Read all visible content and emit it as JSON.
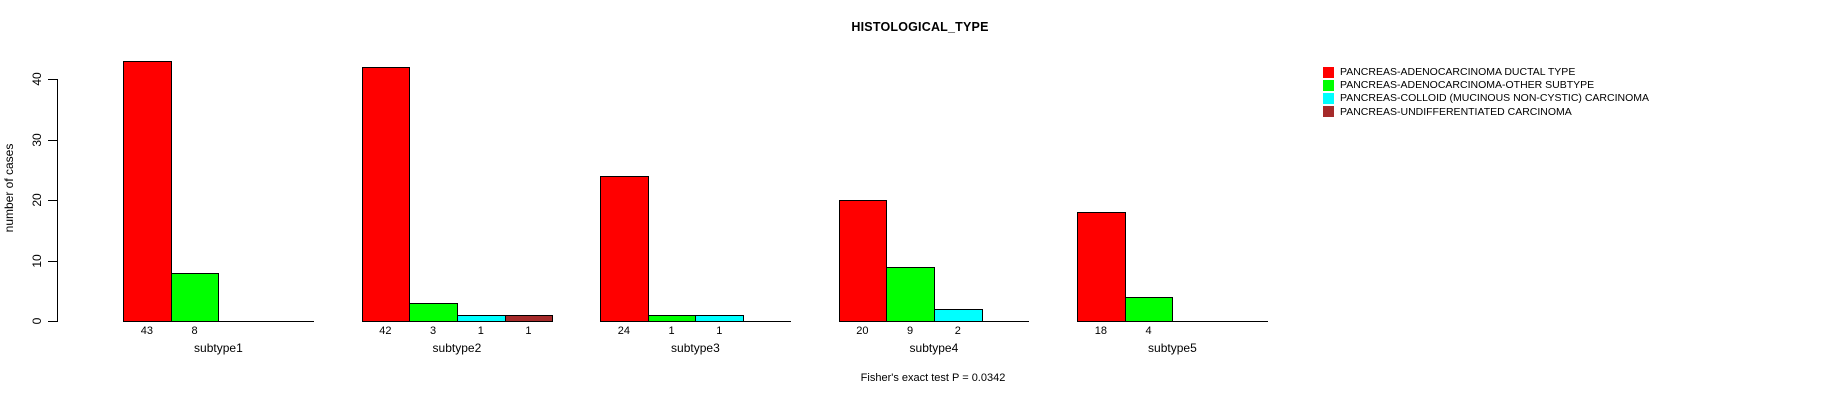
{
  "chart_data": {
    "type": "bar",
    "title": "HISTOLOGICAL_TYPE",
    "ylabel": "number of cases",
    "xlabel": "",
    "footnote": "Fisher's exact test P = 0.0342",
    "categories": [
      "subtype1",
      "subtype2",
      "subtype3",
      "subtype4",
      "subtype5"
    ],
    "series": [
      {
        "name": "PANCREAS-ADENOCARCINOMA DUCTAL TYPE",
        "color": "#FF0000",
        "values": [
          43,
          42,
          24,
          20,
          18
        ]
      },
      {
        "name": "PANCREAS-ADENOCARCINOMA-OTHER SUBTYPE",
        "color": "#00FF00",
        "values": [
          8,
          3,
          1,
          9,
          4
        ]
      },
      {
        "name": "PANCREAS-COLLOID (MUCINOUS NON-CYSTIC) CARCINOMA",
        "color": "#00FFFF",
        "values": [
          0,
          1,
          1,
          2,
          0
        ]
      },
      {
        "name": "PANCREAS-UNDIFFERENTIATED CARCINOMA",
        "color": "#A52A2A",
        "values": [
          0,
          1,
          0,
          0,
          0
        ]
      }
    ],
    "yticks": [
      0,
      10,
      20,
      30,
      40
    ],
    "ylim": [
      0,
      45
    ],
    "grid": false,
    "legend_position": "right",
    "bar_value_labels_shown_when_nonzero": true
  }
}
